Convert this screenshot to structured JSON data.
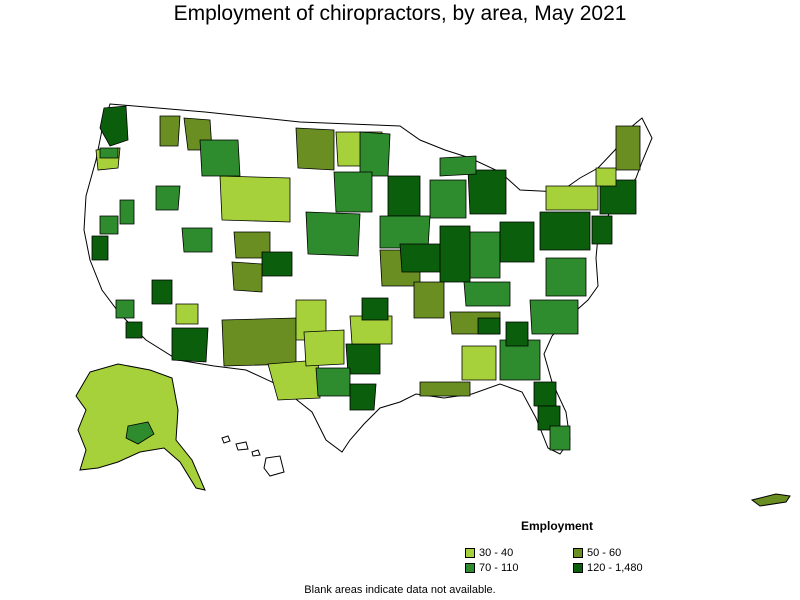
{
  "title": "Employment of chiropractors, by area, May 2021",
  "legend": {
    "title": "Employment",
    "items": [
      {
        "label": "30 - 40",
        "color": "#a6d13b"
      },
      {
        "label": "50 - 60",
        "color": "#6b8e23"
      },
      {
        "label": "70 - 110",
        "color": "#2e8b2e"
      },
      {
        "label": "120 - 1,480",
        "color": "#0b5e0b"
      }
    ]
  },
  "footnote": "Blank areas indicate data not available.",
  "colors": {
    "no_data": "#ffffff",
    "border": "#000000"
  }
}
